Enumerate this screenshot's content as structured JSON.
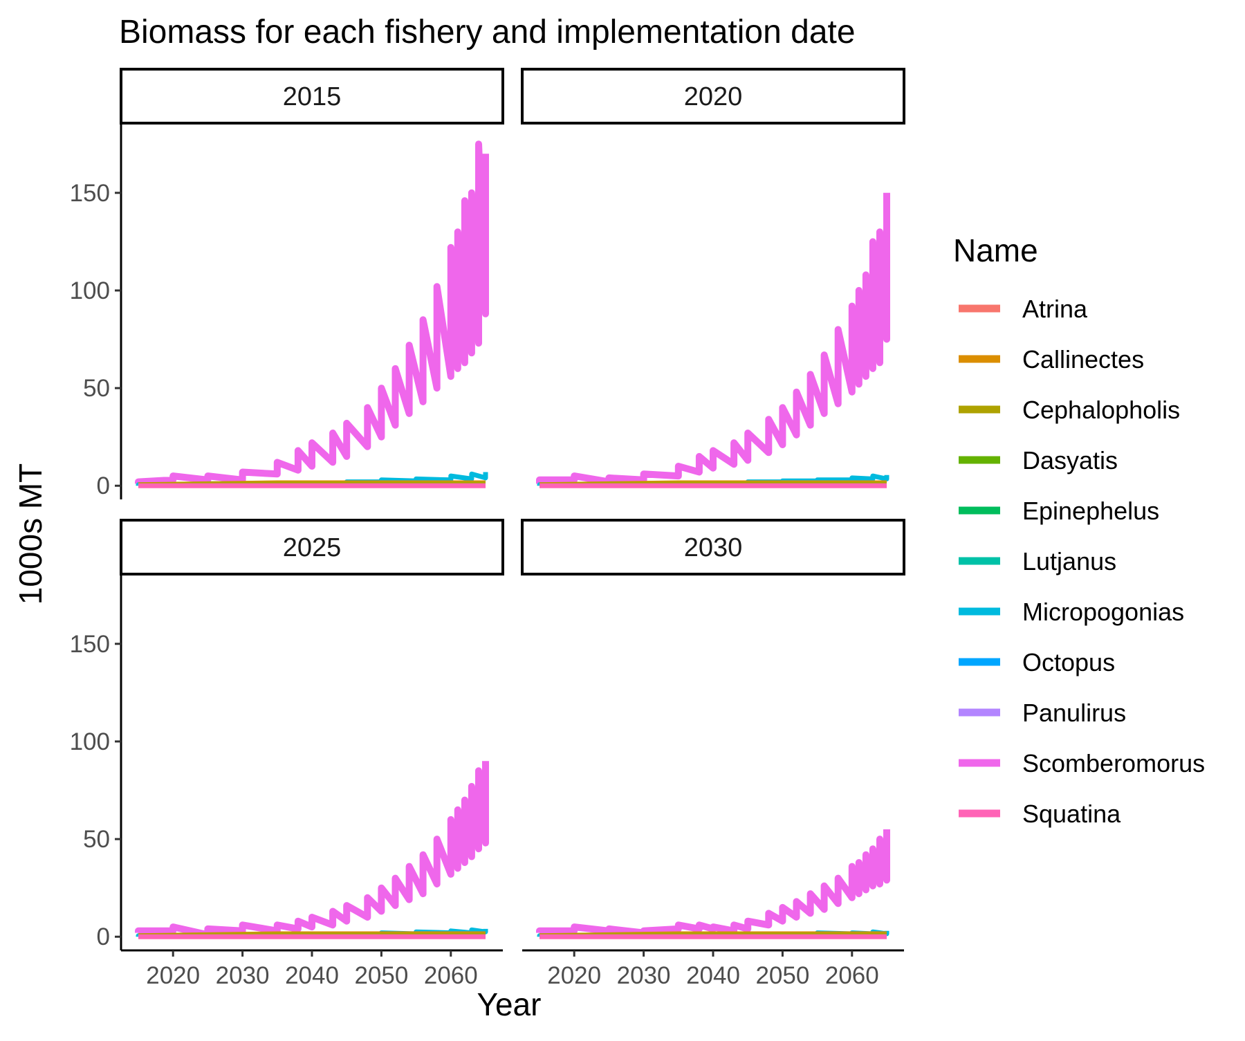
{
  "chart_data": {
    "type": "line",
    "title": "Biomass for each fishery and implementation date",
    "xlabel": "Year",
    "ylabel": "1000s MT",
    "xlim": [
      2015,
      2065
    ],
    "ylim": [
      -7,
      185
    ],
    "x_ticks": [
      2020,
      2030,
      2040,
      2050,
      2060
    ],
    "y_ticks": [
      0,
      50,
      100,
      150
    ],
    "x_tick_labels": [
      "2020",
      "2030",
      "2040",
      "2050",
      "2060"
    ],
    "y_tick_labels": [
      "0",
      "50",
      "100",
      "150"
    ],
    "grid": false,
    "legend": {
      "title": "Name",
      "position": "right",
      "entries": [
        "Atrina",
        "Callinectes",
        "Cephalopholis",
        "Dasyatis",
        "Epinephelus",
        "Lutjanus",
        "Micropogonias",
        "Octopus",
        "Panulirus",
        "Scomberomorus",
        "Squatina"
      ]
    },
    "colors": {
      "Atrina": "#F8766D",
      "Callinectes": "#DB8E00",
      "Cephalopholis": "#AEA200",
      "Dasyatis": "#64B200",
      "Epinephelus": "#00BD5C",
      "Lutjanus": "#00C1A7",
      "Micropogonias": "#00BADE",
      "Octopus": "#00A6FF",
      "Panulirus": "#B385FF",
      "Scomberomorus": "#EF67EB",
      "Squatina": "#FF63B6"
    },
    "panels": [
      {
        "label": "2015",
        "series": [
          {
            "name": "Scomberomorus",
            "x": [
              2015,
              2020,
              2025,
              2030,
              2035,
              2038,
              2040,
              2043,
              2045,
              2048,
              2050,
              2052,
              2054,
              2056,
              2058,
              2060,
              2061,
              2062,
              2063,
              2064,
              2065
            ],
            "lows": [
              1,
              3,
              3,
              3,
              6,
              8,
              10,
              12,
              15,
              20,
              25,
              31,
              37,
              43,
              50,
              56,
              60,
              63,
              68,
              73,
              88
            ],
            "highs": [
              2,
              5,
              5,
              7,
              12,
              18,
              22,
              27,
              32,
              40,
              50,
              60,
              72,
              85,
              102,
              122,
              130,
              146,
              150,
              175,
              170
            ]
          },
          {
            "name": "Micropogonias",
            "x": [
              2015,
              2025,
              2035,
              2045,
              2050,
              2055,
              2060,
              2063,
              2065
            ],
            "lows": [
              0,
              0.5,
              1,
              1.5,
              2,
              2.5,
              3,
              3.5,
              4
            ],
            "highs": [
              0.5,
              1,
              1.5,
              2,
              3,
              3.5,
              5,
              6,
              7
            ]
          },
          {
            "name": "Callinectes",
            "x": [
              2015,
              2025,
              2035,
              2045,
              2055,
              2065
            ],
            "values": [
              0.5,
              1,
              1.5,
              1.5,
              1.5,
              1.5
            ]
          },
          {
            "name": "Cephalopholis",
            "x": [
              2015,
              2025,
              2035,
              2045,
              2055,
              2065
            ],
            "values": [
              0.3,
              0.8,
              1,
              1,
              1,
              1
            ]
          },
          {
            "name": "Squatina",
            "x": [
              2015,
              2065
            ],
            "values": [
              0,
              0
            ]
          }
        ]
      },
      {
        "label": "2020",
        "series": [
          {
            "name": "Scomberomorus",
            "x": [
              2015,
              2020,
              2025,
              2030,
              2035,
              2038,
              2040,
              2043,
              2045,
              2048,
              2050,
              2052,
              2054,
              2056,
              2058,
              2060,
              2061,
              2062,
              2063,
              2064,
              2065
            ],
            "lows": [
              1,
              3,
              2,
              3,
              5,
              7,
              9,
              11,
              13,
              17,
              21,
              26,
              31,
              37,
              42,
              48,
              52,
              56,
              60,
              63,
              75
            ],
            "highs": [
              3,
              5,
              4,
              6,
              10,
              15,
              18,
              22,
              27,
              34,
              40,
              48,
              57,
              67,
              80,
              92,
              100,
              108,
              125,
              130,
              150
            ]
          },
          {
            "name": "Micropogonias",
            "x": [
              2015,
              2025,
              2035,
              2045,
              2050,
              2055,
              2060,
              2063,
              2065
            ],
            "lows": [
              0,
              0.5,
              1,
              1.5,
              2,
              2.5,
              3,
              3.5,
              3.5
            ],
            "highs": [
              0.5,
              1,
              1.5,
              2,
              2.5,
              3,
              4,
              5,
              5.5
            ]
          },
          {
            "name": "Callinectes",
            "x": [
              2015,
              2025,
              2035,
              2045,
              2055,
              2065
            ],
            "values": [
              0.5,
              1,
              1.5,
              1.5,
              1.5,
              1.5
            ]
          },
          {
            "name": "Cephalopholis",
            "x": [
              2015,
              2025,
              2035,
              2045,
              2055,
              2065
            ],
            "values": [
              0.3,
              0.8,
              1,
              1,
              1,
              1
            ]
          },
          {
            "name": "Squatina",
            "x": [
              2015,
              2065
            ],
            "values": [
              0,
              0
            ]
          }
        ]
      },
      {
        "label": "2025",
        "series": [
          {
            "name": "Scomberomorus",
            "x": [
              2015,
              2020,
              2025,
              2030,
              2035,
              2038,
              2040,
              2043,
              2045,
              2048,
              2050,
              2052,
              2054,
              2056,
              2058,
              2060,
              2061,
              2062,
              2063,
              2064,
              2065
            ],
            "lows": [
              2,
              3,
              1,
              3,
              3,
              4,
              5,
              6,
              8,
              10,
              13,
              16,
              19,
              22,
              27,
              32,
              35,
              38,
              41,
              45,
              48
            ],
            "highs": [
              3,
              5,
              4,
              6,
              6,
              8,
              10,
              13,
              16,
              20,
              25,
              30,
              36,
              42,
              50,
              60,
              65,
              70,
              77,
              85,
              90
            ]
          },
          {
            "name": "Micropogonias",
            "x": [
              2015,
              2025,
              2035,
              2045,
              2050,
              2055,
              2060,
              2063,
              2065
            ],
            "lows": [
              0,
              0.5,
              0.5,
              1,
              1.5,
              1.5,
              2,
              2,
              2.5
            ],
            "highs": [
              0.5,
              0.5,
              1,
              1.5,
              2,
              2.5,
              3,
              3.5,
              4
            ]
          },
          {
            "name": "Callinectes",
            "x": [
              2015,
              2025,
              2035,
              2045,
              2055,
              2065
            ],
            "values": [
              0.5,
              1,
              1.5,
              1.5,
              1.5,
              1.5
            ]
          },
          {
            "name": "Cephalopholis",
            "x": [
              2015,
              2025,
              2035,
              2045,
              2055,
              2065
            ],
            "values": [
              0.3,
              0.8,
              1,
              1,
              1,
              1
            ]
          },
          {
            "name": "Squatina",
            "x": [
              2015,
              2065
            ],
            "values": [
              0,
              0
            ]
          }
        ]
      },
      {
        "label": "2030",
        "series": [
          {
            "name": "Scomberomorus",
            "x": [
              2015,
              2020,
              2025,
              2030,
              2035,
              2038,
              2040,
              2043,
              2045,
              2048,
              2050,
              2052,
              2054,
              2056,
              2058,
              2060,
              2061,
              2062,
              2063,
              2064,
              2065
            ],
            "lows": [
              2,
              3,
              3,
              2,
              4,
              4,
              4,
              3,
              4,
              6,
              8,
              10,
              12,
              14,
              17,
              20,
              22,
              24,
              26,
              27,
              29
            ],
            "highs": [
              3,
              5,
              4,
              3,
              6,
              6,
              5,
              6,
              8,
              12,
              15,
              18,
              22,
              26,
              30,
              36,
              38,
              42,
              45,
              50,
              55
            ]
          },
          {
            "name": "Micropogonias",
            "x": [
              2015,
              2025,
              2035,
              2045,
              2050,
              2055,
              2060,
              2063,
              2065
            ],
            "lows": [
              0,
              0.5,
              0.5,
              1,
              1,
              1,
              1.5,
              1.5,
              1.5
            ],
            "highs": [
              0.5,
              0.5,
              1,
              1,
              1.5,
              2,
              2,
              2.5,
              3
            ]
          },
          {
            "name": "Callinectes",
            "x": [
              2015,
              2025,
              2035,
              2045,
              2055,
              2065
            ],
            "values": [
              0.5,
              1,
              1.5,
              1.5,
              1.5,
              1.5
            ]
          },
          {
            "name": "Cephalopholis",
            "x": [
              2015,
              2025,
              2035,
              2045,
              2055,
              2065
            ],
            "values": [
              0.3,
              0.8,
              1,
              1,
              1,
              1
            ]
          },
          {
            "name": "Squatina",
            "x": [
              2015,
              2065
            ],
            "values": [
              0,
              0
            ]
          }
        ]
      }
    ]
  }
}
